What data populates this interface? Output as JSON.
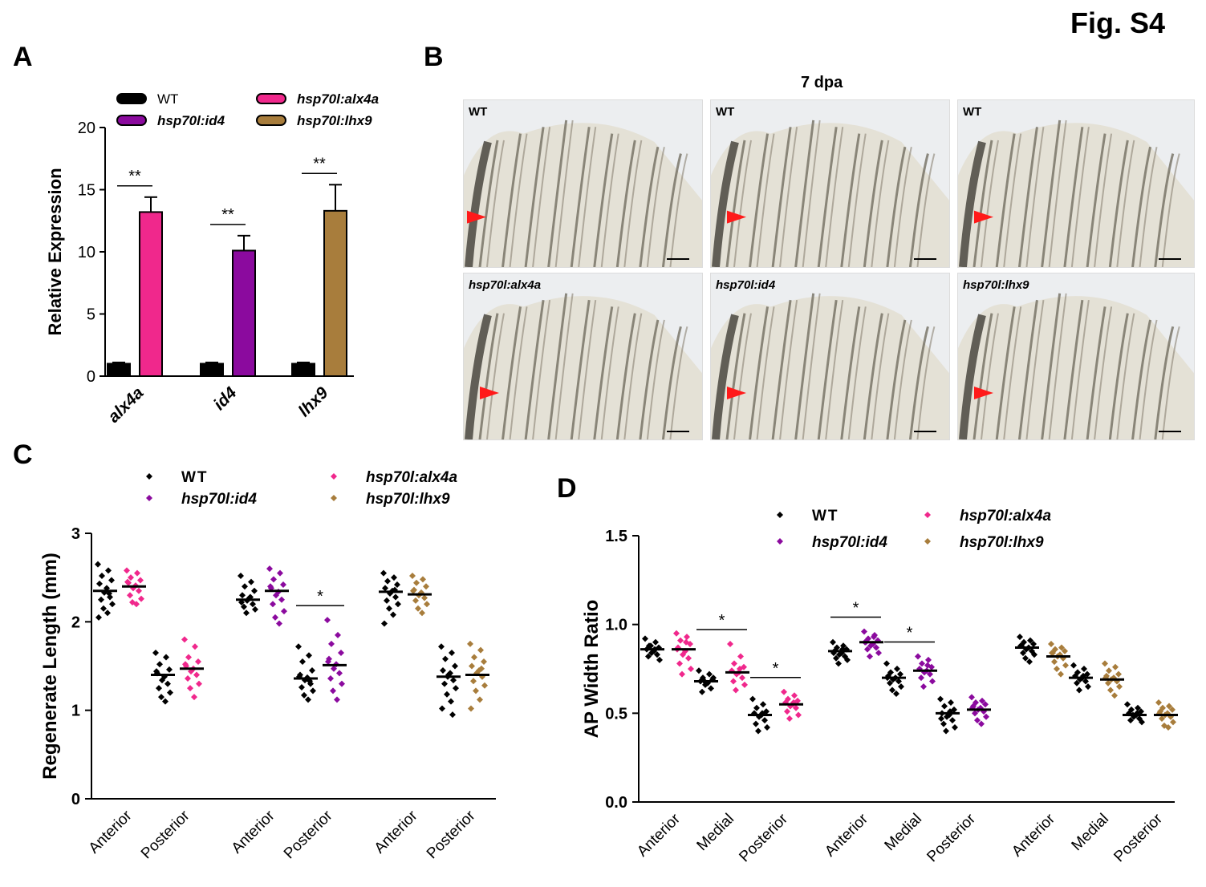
{
  "figure_label": "Fig. S4",
  "panels": {
    "A": {
      "letter": "A"
    },
    "B": {
      "letter": "B",
      "title": "7 dpa",
      "photos": [
        {
          "label": "WT"
        },
        {
          "label": "WT"
        },
        {
          "label": "WT"
        },
        {
          "label": "hsp70l:alx4a"
        },
        {
          "label": "hsp70l:id4"
        },
        {
          "label": "hsp70l:lhx9"
        }
      ]
    },
    "C": {
      "letter": "C"
    },
    "D": {
      "letter": "D"
    }
  },
  "colors": {
    "WT": "#000000",
    "alx4a": "#f0288c",
    "id4": "#8b0a9e",
    "lhx9": "#a87d3c",
    "arrow": "#ff1a1a"
  },
  "chart_data": [
    {
      "id": "A",
      "type": "bar",
      "ylabel": "Relative Expression",
      "ylim": [
        0,
        20
      ],
      "yticks": [
        "0",
        "5",
        "10",
        "15",
        "20"
      ],
      "categories": [
        "alx4a",
        "id4",
        "lhx9"
      ],
      "legend": [
        "WT",
        "hsp70l:id4",
        "hsp70l:alx4a",
        "hsp70l:lhx9"
      ],
      "groups": [
        {
          "category": "alx4a",
          "bars": [
            {
              "series": "WT",
              "value": 1.0,
              "err": 0.1
            },
            {
              "series": "hsp70l:alx4a",
              "value": 13.2,
              "err": 1.2
            }
          ],
          "sig": "**"
        },
        {
          "category": "id4",
          "bars": [
            {
              "series": "WT",
              "value": 1.0,
              "err": 0.1
            },
            {
              "series": "hsp70l:id4",
              "value": 10.1,
              "err": 1.2
            }
          ],
          "sig": "**"
        },
        {
          "category": "lhx9",
          "bars": [
            {
              "series": "WT",
              "value": 1.0,
              "err": 0.1
            },
            {
              "series": "hsp70l:lhx9",
              "value": 13.3,
              "err": 2.1
            }
          ],
          "sig": "**"
        }
      ]
    },
    {
      "id": "C",
      "type": "scatter",
      "ylabel": "Regenerate Length (mm)",
      "ylim": [
        0,
        3
      ],
      "yticks": [
        "0",
        "1",
        "2",
        "3"
      ],
      "legend": [
        "WT",
        "hsp70l:id4",
        "hsp70l:alx4a",
        "hsp70l:lhx9"
      ],
      "groups": [
        {
          "label": "Anterior",
          "pairs": [
            {
              "series": "WT",
              "mean": 2.35,
              "values": [
                2.65,
                2.58,
                2.52,
                2.47,
                2.43,
                2.38,
                2.33,
                2.28,
                2.25,
                2.2,
                2.15,
                2.1,
                2.05,
                2.32
              ]
            },
            {
              "series": "hsp70l:alx4a",
              "mean": 2.4,
              "values": [
                2.58,
                2.55,
                2.5,
                2.47,
                2.44,
                2.41,
                2.38,
                2.35,
                2.3,
                2.26,
                2.22,
                2.2,
                2.45
              ]
            }
          ],
          "sig": ""
        },
        {
          "label": "Posterior",
          "pairs": [
            {
              "series": "WT",
              "mean": 1.4,
              "values": [
                1.65,
                1.6,
                1.52,
                1.46,
                1.42,
                1.38,
                1.34,
                1.3,
                1.25,
                1.2,
                1.15,
                1.1,
                1.44
              ]
            },
            {
              "series": "hsp70l:alx4a",
              "mean": 1.47,
              "values": [
                1.8,
                1.72,
                1.6,
                1.55,
                1.5,
                1.47,
                1.44,
                1.4,
                1.36,
                1.3,
                1.25,
                1.15,
                1.52
              ]
            }
          ],
          "sig": ""
        },
        {
          "label": "Anterior",
          "pairs": [
            {
              "series": "WT",
              "mean": 2.25,
              "values": [
                2.52,
                2.45,
                2.4,
                2.35,
                2.3,
                2.27,
                2.24,
                2.2,
                2.17,
                2.14,
                2.1,
                2.28,
                2.22
              ]
            },
            {
              "series": "hsp70l:id4",
              "mean": 2.35,
              "values": [
                2.6,
                2.55,
                2.48,
                2.42,
                2.38,
                2.34,
                2.3,
                2.25,
                2.2,
                2.12,
                2.05,
                1.98,
                2.4
              ]
            }
          ],
          "sig": ""
        },
        {
          "label": "Posterior",
          "pairs": [
            {
              "series": "WT",
              "mean": 1.36,
              "values": [
                1.72,
                1.62,
                1.55,
                1.45,
                1.4,
                1.37,
                1.34,
                1.3,
                1.26,
                1.22,
                1.17,
                1.12,
                1.38,
                1.33
              ]
            },
            {
              "series": "hsp70l:id4",
              "mean": 1.51,
              "values": [
                2.02,
                1.85,
                1.75,
                1.65,
                1.58,
                1.52,
                1.47,
                1.42,
                1.36,
                1.3,
                1.22,
                1.12,
                1.55
              ]
            }
          ],
          "sig": "*"
        },
        {
          "label": "Anterior",
          "pairs": [
            {
              "series": "WT",
              "mean": 2.34,
              "values": [
                2.55,
                2.5,
                2.46,
                2.42,
                2.38,
                2.35,
                2.32,
                2.28,
                2.24,
                2.2,
                2.15,
                2.08,
                1.98,
                2.36
              ]
            },
            {
              "series": "hsp70l:lhx9",
              "mean": 2.31,
              "values": [
                2.52,
                2.48,
                2.44,
                2.4,
                2.36,
                2.33,
                2.3,
                2.27,
                2.24,
                2.2,
                2.15,
                2.1,
                2.35
              ]
            }
          ],
          "sig": ""
        },
        {
          "label": "Posterior",
          "pairs": [
            {
              "series": "WT",
              "mean": 1.38,
              "values": [
                1.72,
                1.65,
                1.58,
                1.5,
                1.45,
                1.42,
                1.38,
                1.34,
                1.3,
                1.25,
                1.18,
                1.1,
                1.02,
                0.95,
                1.4
              ]
            },
            {
              "series": "hsp70l:lhx9",
              "mean": 1.4,
              "values": [
                1.75,
                1.68,
                1.6,
                1.55,
                1.5,
                1.45,
                1.42,
                1.38,
                1.33,
                1.28,
                1.22,
                1.12,
                1.02,
                1.47
              ]
            }
          ],
          "sig": ""
        }
      ]
    },
    {
      "id": "D",
      "type": "scatter",
      "ylabel": "AP Width Ratio",
      "ylim": [
        0,
        1.5
      ],
      "yticks": [
        "0.0",
        "0.5",
        "1.0",
        "1.5"
      ],
      "legend": [
        "WT",
        "hsp70l:alx4a",
        "hsp70l:id4",
        "hsp70l:lhx9"
      ],
      "groups": [
        {
          "label": "Anterior",
          "pairs": [
            {
              "series": "WT",
              "mean": 0.86,
              "values": [
                0.92,
                0.9,
                0.88,
                0.87,
                0.86,
                0.85,
                0.84,
                0.83,
                0.82,
                0.8,
                0.88,
                0.86
              ]
            },
            {
              "series": "hsp70l:alx4a",
              "mean": 0.86,
              "values": [
                0.95,
                0.93,
                0.91,
                0.89,
                0.87,
                0.85,
                0.83,
                0.81,
                0.78,
                0.75,
                0.72,
                0.9,
                0.86
              ]
            }
          ],
          "sig": ""
        },
        {
          "label": "Medial",
          "pairs": [
            {
              "series": "WT",
              "mean": 0.68,
              "values": [
                0.74,
                0.72,
                0.7,
                0.69,
                0.68,
                0.67,
                0.66,
                0.64,
                0.62,
                0.7,
                0.68
              ]
            },
            {
              "series": "hsp70l:alx4a",
              "mean": 0.73,
              "values": [
                0.89,
                0.82,
                0.78,
                0.76,
                0.74,
                0.73,
                0.72,
                0.7,
                0.68,
                0.66,
                0.63,
                0.75
              ]
            }
          ],
          "sig": "*"
        },
        {
          "label": "Posterior",
          "pairs": [
            {
              "series": "WT",
              "mean": 0.49,
              "values": [
                0.58,
                0.55,
                0.53,
                0.51,
                0.5,
                0.49,
                0.48,
                0.46,
                0.44,
                0.42,
                0.4,
                0.5
              ]
            },
            {
              "series": "hsp70l:alx4a",
              "mean": 0.55,
              "values": [
                0.62,
                0.6,
                0.58,
                0.57,
                0.56,
                0.55,
                0.54,
                0.53,
                0.51,
                0.49,
                0.47,
                0.56
              ]
            }
          ],
          "sig": "*"
        },
        {
          "label": "Anterior",
          "pairs": [
            {
              "series": "WT",
              "mean": 0.85,
              "values": [
                0.9,
                0.88,
                0.87,
                0.86,
                0.85,
                0.84,
                0.83,
                0.82,
                0.81,
                0.8,
                0.78,
                0.86,
                0.84
              ]
            },
            {
              "series": "hsp70l:id4",
              "mean": 0.9,
              "values": [
                0.96,
                0.94,
                0.92,
                0.91,
                0.9,
                0.89,
                0.88,
                0.87,
                0.86,
                0.84,
                0.82,
                0.93,
                0.9
              ]
            }
          ],
          "sig": "*"
        },
        {
          "label": "Medial",
          "pairs": [
            {
              "series": "WT",
              "mean": 0.7,
              "values": [
                0.78,
                0.75,
                0.73,
                0.72,
                0.71,
                0.7,
                0.69,
                0.68,
                0.67,
                0.65,
                0.63,
                0.61,
                0.7
              ]
            },
            {
              "series": "hsp70l:id4",
              "mean": 0.74,
              "values": [
                0.82,
                0.8,
                0.78,
                0.76,
                0.75,
                0.74,
                0.73,
                0.72,
                0.7,
                0.68,
                0.65,
                0.77
              ]
            }
          ],
          "sig": "*"
        },
        {
          "label": "Posterior",
          "pairs": [
            {
              "series": "WT",
              "mean": 0.5,
              "values": [
                0.58,
                0.56,
                0.54,
                0.52,
                0.5,
                0.49,
                0.48,
                0.46,
                0.44,
                0.42,
                0.4,
                0.51,
                0.47
              ]
            },
            {
              "series": "hsp70l:id4",
              "mean": 0.52,
              "values": [
                0.59,
                0.57,
                0.56,
                0.55,
                0.54,
                0.53,
                0.52,
                0.51,
                0.5,
                0.48,
                0.46,
                0.44,
                0.53
              ]
            }
          ],
          "sig": ""
        },
        {
          "label": "Anterior",
          "pairs": [
            {
              "series": "WT",
              "mean": 0.87,
              "values": [
                0.93,
                0.91,
                0.9,
                0.89,
                0.88,
                0.87,
                0.86,
                0.85,
                0.84,
                0.83,
                0.81,
                0.79,
                0.88
              ]
            },
            {
              "series": "hsp70l:lhx9",
              "mean": 0.82,
              "values": [
                0.89,
                0.87,
                0.86,
                0.85,
                0.84,
                0.83,
                0.82,
                0.81,
                0.79,
                0.77,
                0.75,
                0.72,
                0.84
              ]
            }
          ],
          "sig": ""
        },
        {
          "label": "Medial",
          "pairs": [
            {
              "series": "WT",
              "mean": 0.7,
              "values": [
                0.77,
                0.75,
                0.73,
                0.72,
                0.71,
                0.7,
                0.69,
                0.68,
                0.67,
                0.65,
                0.63,
                0.71
              ]
            },
            {
              "series": "hsp70l:lhx9",
              "mean": 0.69,
              "values": [
                0.78,
                0.76,
                0.74,
                0.72,
                0.71,
                0.7,
                0.69,
                0.68,
                0.67,
                0.65,
                0.63,
                0.6,
                0.7
              ]
            }
          ],
          "sig": ""
        },
        {
          "label": "Posterior",
          "pairs": [
            {
              "series": "WT",
              "mean": 0.49,
              "values": [
                0.55,
                0.53,
                0.52,
                0.51,
                0.5,
                0.49,
                0.48,
                0.47,
                0.46,
                0.45,
                0.49,
                0.5
              ]
            },
            {
              "series": "hsp70l:lhx9",
              "mean": 0.49,
              "values": [
                0.56,
                0.54,
                0.53,
                0.52,
                0.51,
                0.5,
                0.49,
                0.48,
                0.47,
                0.45,
                0.43,
                0.42,
                0.5
              ]
            }
          ],
          "sig": ""
        }
      ]
    }
  ]
}
